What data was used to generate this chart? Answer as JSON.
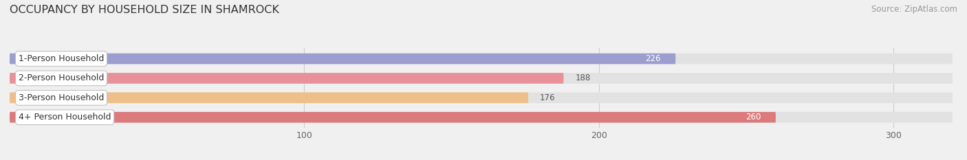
{
  "title": "OCCUPANCY BY HOUSEHOLD SIZE IN SHAMROCK",
  "source": "Source: ZipAtlas.com",
  "categories": [
    "1-Person Household",
    "2-Person Household",
    "3-Person Household",
    "4+ Person Household"
  ],
  "values": [
    226,
    188,
    176,
    260
  ],
  "bar_colors": [
    "#9b9ece",
    "#e8919b",
    "#efbf8a",
    "#dc7b7b"
  ],
  "xlim_max": 320,
  "xticks": [
    100,
    200,
    300
  ],
  "background_color": "#f0f0f0",
  "bar_bg_color": "#e2e2e2",
  "label_bg_color": "#ffffff",
  "title_fontsize": 11.5,
  "source_fontsize": 8.5,
  "label_fontsize": 9,
  "value_fontsize": 8.5,
  "tick_fontsize": 9
}
